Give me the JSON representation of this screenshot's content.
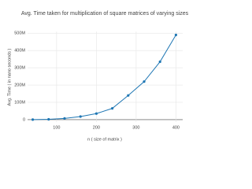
{
  "chart_data": {
    "type": "line",
    "title": "Avg. Time taken for multiplication of square matrices of varying sizes",
    "x_label": "n ( size of matrix )",
    "y_label": "Avg. Time ( in nano seconds )",
    "x": [
      40,
      80,
      120,
      160,
      200,
      240,
      280,
      320,
      360,
      400
    ],
    "series": [
      {
        "name": "Avg. Time",
        "color": "#1f77b4",
        "values": [
          300000,
          2000000,
          7000000,
          18000000,
          35000000,
          65000000,
          140000000,
          220000000,
          335000000,
          490000000
        ]
      }
    ],
    "xlim": [
      27,
      417
    ],
    "xticks": [
      100,
      200,
      300,
      400
    ],
    "ylim": [
      -14000000,
      510000000
    ],
    "yticks": [
      0,
      {
        "value": 100000000,
        "label": "100M"
      },
      {
        "value": 200000000,
        "label": "200M"
      },
      {
        "value": 300000000,
        "label": "300M"
      },
      {
        "value": 400000000,
        "label": "400M"
      },
      {
        "value": 500000000,
        "label": "500M"
      }
    ],
    "grid": true,
    "markers": true
  }
}
